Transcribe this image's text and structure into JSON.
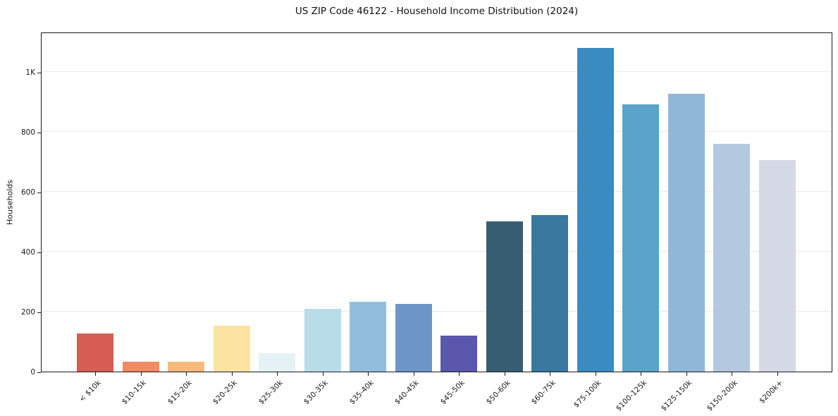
{
  "chart_data": {
    "type": "bar",
    "title": "US ZIP Code 46122 - Household Income Distribution (2024)",
    "xlabel": "",
    "ylabel": "Households",
    "categories": [
      "< $10k",
      "$10-15k",
      "$15-20k",
      "$20-25k",
      "$25-30k",
      "$30-35k",
      "$35-40k",
      "$40-45k",
      "$45-50k",
      "$50-60k",
      "$60-75k",
      "$75-100k",
      "$100-125k",
      "$125-150k",
      "$150-200k",
      "$200k+"
    ],
    "values": [
      127,
      34,
      33,
      153,
      62,
      210,
      233,
      226,
      120,
      501,
      522,
      1080,
      892,
      927,
      760,
      706
    ],
    "bar_colors": [
      "#d65d52",
      "#f28a63",
      "#f7ba7d",
      "#fce3a4",
      "#e4f1f5",
      "#b9dce9",
      "#92bedb",
      "#6e95c8",
      "#5a57ad",
      "#375d72",
      "#3a78a0",
      "#398bc0",
      "#5ba3c9",
      "#90b7d6",
      "#b4c8df",
      "#d6d9e6"
    ],
    "yticks": {
      "values": [
        0,
        200,
        400,
        600,
        800,
        1000
      ],
      "labels": [
        "0",
        "200",
        "400",
        "600",
        "800",
        "1K"
      ]
    },
    "ylim": [
      0,
      1134
    ],
    "grid": "horizontal",
    "gridline_color": "#e9e9e9",
    "axis_color": "#1a1a1a",
    "background": "#ffffff",
    "legend": "none"
  }
}
